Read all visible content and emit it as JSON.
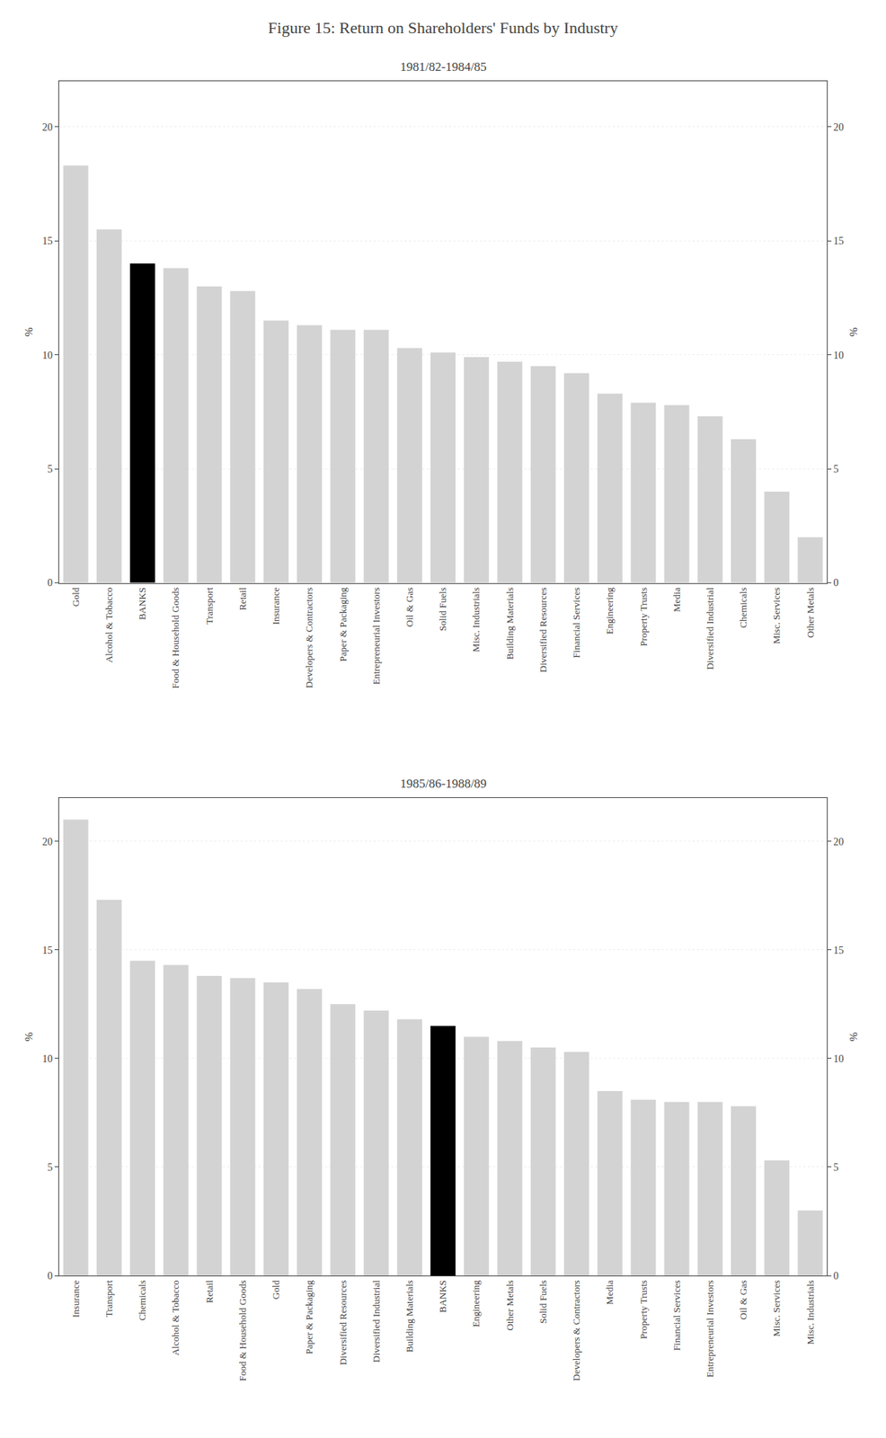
{
  "title": "Figure 15: Return on Shareholders' Funds by Industry",
  "chart_data": [
    {
      "type": "bar",
      "title": "1981/82-1984/85",
      "categories": [
        "Gold",
        "Alcohol & Tobacco",
        "BANKS",
        "Food & Household Goods",
        "Transport",
        "Retail",
        "Insurance",
        "Developers & Contractors",
        "Paper & Packaging",
        "Entrepreneurial Investors",
        "Oil & Gas",
        "Solid Fuels",
        "Misc. Industrials",
        "Building Materials",
        "Diversified Resources",
        "Financial Services",
        "Engineering",
        "Property Trusts",
        "Media",
        "Diversified Industrial",
        "Chemicals",
        "Misc. Services",
        "Other Metals"
      ],
      "values": [
        18.3,
        15.5,
        14.0,
        13.8,
        13.0,
        12.8,
        11.5,
        11.3,
        11.1,
        11.1,
        10.3,
        10.1,
        9.9,
        9.7,
        9.5,
        9.2,
        8.3,
        7.9,
        7.8,
        7.3,
        6.3,
        4.0,
        2.0
      ],
      "colors": [
        "#d3d3d3",
        "#d3d3d3",
        "#000000",
        "#d3d3d3",
        "#d3d3d3",
        "#d3d3d3",
        "#d3d3d3",
        "#d3d3d3",
        "#d3d3d3",
        "#d3d3d3",
        "#d3d3d3",
        "#d3d3d3",
        "#d3d3d3",
        "#d3d3d3",
        "#d3d3d3",
        "#d3d3d3",
        "#d3d3d3",
        "#d3d3d3",
        "#d3d3d3",
        "#d3d3d3",
        "#d3d3d3",
        "#d3d3d3",
        "#d3d3d3"
      ],
      "ylabel": "%",
      "y2label": "%",
      "ylim": [
        0,
        22
      ],
      "yticks": [
        0,
        5,
        10,
        15,
        20
      ],
      "y2lim": [
        0,
        22
      ],
      "y2ticks": [
        0,
        5,
        10,
        15,
        20
      ],
      "grid": true
    },
    {
      "type": "bar",
      "title": "1985/86-1988/89",
      "categories": [
        "Insurance",
        "Transport",
        "Chemicals",
        "Alcohol & Tobacco",
        "Retail",
        "Food & Household Goods",
        "Gold",
        "Paper & Packaging",
        "Diversified Resources",
        "Diversified Industrial",
        "Building Materials",
        "BANKS",
        "Engineering",
        "Other Metals",
        "Solid Fuels",
        "Developers & Contractors",
        "Media",
        "Property Trusts",
        "Financial Services",
        "Entrepreneurial Investors",
        "Oil & Gas",
        "Misc. Services",
        "Misc. Industrials"
      ],
      "values": [
        21.0,
        17.3,
        14.5,
        14.3,
        13.8,
        13.7,
        13.5,
        13.2,
        12.5,
        12.2,
        11.8,
        11.5,
        11.0,
        10.8,
        10.5,
        10.3,
        8.5,
        8.1,
        8.0,
        8.0,
        7.8,
        5.3,
        3.0
      ],
      "colors": [
        "#d3d3d3",
        "#d3d3d3",
        "#d3d3d3",
        "#d3d3d3",
        "#d3d3d3",
        "#d3d3d3",
        "#d3d3d3",
        "#d3d3d3",
        "#d3d3d3",
        "#d3d3d3",
        "#d3d3d3",
        "#000000",
        "#d3d3d3",
        "#d3d3d3",
        "#d3d3d3",
        "#d3d3d3",
        "#d3d3d3",
        "#d3d3d3",
        "#d3d3d3",
        "#d3d3d3",
        "#d3d3d3",
        "#d3d3d3",
        "#d3d3d3"
      ],
      "ylabel": "%",
      "y2label": "%",
      "ylim": [
        0,
        22
      ],
      "yticks": [
        0,
        5,
        10,
        15,
        20
      ],
      "y2lim": [
        0,
        22
      ],
      "y2ticks": [
        0,
        5,
        10,
        15,
        20
      ],
      "grid": true
    }
  ]
}
